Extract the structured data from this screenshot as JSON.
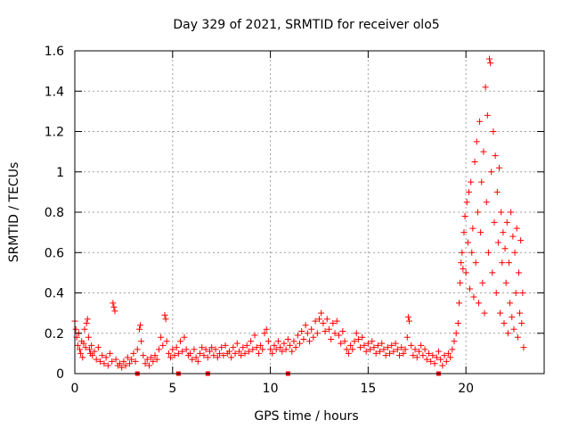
{
  "chart_data": {
    "type": "scatter",
    "title": "Day 329 of 2021, SRMTID for receiver olo5",
    "xlabel": "GPS time / hours",
    "ylabel": "SRMTID / TECUs",
    "xlim": [
      0,
      24
    ],
    "ylim": [
      0,
      1.6
    ],
    "x_ticks": [
      0,
      5,
      10,
      15,
      20
    ],
    "x_tick_labels": [
      "0",
      "5",
      "10",
      "15",
      "20"
    ],
    "y_ticks": [
      0,
      0.2,
      0.4,
      0.6,
      0.8,
      1.0,
      1.2,
      1.4,
      1.6
    ],
    "y_tick_labels": [
      "0",
      "0.2",
      "0.4",
      "0.6",
      "0.8",
      "1",
      "1.2",
      "1.4",
      "1.6"
    ],
    "grid": true,
    "marker": "+",
    "series_color": "#ff0000",
    "series": [
      {
        "name": "SRMTID",
        "points": [
          [
            0.0,
            0.26
          ],
          [
            0.05,
            0.22
          ],
          [
            0.1,
            0.18
          ],
          [
            0.15,
            0.14
          ],
          [
            0.2,
            0.2
          ],
          [
            0.25,
            0.12
          ],
          [
            0.3,
            0.1
          ],
          [
            0.35,
            0.16
          ],
          [
            0.4,
            0.08
          ],
          [
            0.45,
            0.15
          ],
          [
            0.5,
            0.22
          ],
          [
            0.55,
            0.13
          ],
          [
            0.6,
            0.25
          ],
          [
            0.65,
            0.27
          ],
          [
            0.7,
            0.18
          ],
          [
            0.75,
            0.12
          ],
          [
            0.8,
            0.1
          ],
          [
            0.85,
            0.14
          ],
          [
            0.9,
            0.09
          ],
          [
            1.0,
            0.11
          ],
          [
            1.1,
            0.07
          ],
          [
            1.2,
            0.13
          ],
          [
            1.3,
            0.06
          ],
          [
            1.4,
            0.09
          ],
          [
            1.5,
            0.05
          ],
          [
            1.6,
            0.08
          ],
          [
            1.7,
            0.04
          ],
          [
            1.8,
            0.1
          ],
          [
            1.9,
            0.06
          ],
          [
            1.95,
            0.35
          ],
          [
            2.0,
            0.33
          ],
          [
            2.05,
            0.31
          ],
          [
            2.1,
            0.07
          ],
          [
            2.2,
            0.04
          ],
          [
            2.3,
            0.05
          ],
          [
            2.4,
            0.03
          ],
          [
            2.5,
            0.06
          ],
          [
            2.6,
            0.04
          ],
          [
            2.7,
            0.08
          ],
          [
            2.8,
            0.05
          ],
          [
            2.9,
            0.07
          ],
          [
            3.0,
            0.1
          ],
          [
            3.1,
            0.06
          ],
          [
            3.2,
            0.12
          ],
          [
            3.3,
            0.22
          ],
          [
            3.35,
            0.24
          ],
          [
            3.4,
            0.16
          ],
          [
            3.5,
            0.09
          ],
          [
            3.6,
            0.05
          ],
          [
            3.7,
            0.07
          ],
          [
            3.8,
            0.04
          ],
          [
            3.9,
            0.08
          ],
          [
            4.0,
            0.06
          ],
          [
            4.1,
            0.09
          ],
          [
            4.2,
            0.07
          ],
          [
            4.3,
            0.12
          ],
          [
            4.4,
            0.18
          ],
          [
            4.5,
            0.14
          ],
          [
            4.6,
            0.29
          ],
          [
            4.65,
            0.27
          ],
          [
            4.7,
            0.16
          ],
          [
            4.8,
            0.1
          ],
          [
            4.9,
            0.08
          ],
          [
            5.0,
            0.12
          ],
          [
            5.1,
            0.09
          ],
          [
            5.2,
            0.13
          ],
          [
            5.3,
            0.1
          ],
          [
            5.4,
            0.16
          ],
          [
            5.5,
            0.11
          ],
          [
            5.6,
            0.18
          ],
          [
            5.7,
            0.12
          ],
          [
            5.8,
            0.09
          ],
          [
            5.9,
            0.1
          ],
          [
            6.0,
            0.07
          ],
          [
            6.1,
            0.12
          ],
          [
            6.2,
            0.08
          ],
          [
            6.3,
            0.06
          ],
          [
            6.4,
            0.1
          ],
          [
            6.5,
            0.13
          ],
          [
            6.6,
            0.09
          ],
          [
            6.7,
            0.12
          ],
          [
            6.8,
            0.08
          ],
          [
            6.9,
            0.11
          ],
          [
            7.0,
            0.13
          ],
          [
            7.1,
            0.09
          ],
          [
            7.2,
            0.12
          ],
          [
            7.3,
            0.08
          ],
          [
            7.4,
            0.1
          ],
          [
            7.5,
            0.13
          ],
          [
            7.6,
            0.09
          ],
          [
            7.7,
            0.14
          ],
          [
            7.8,
            0.1
          ],
          [
            7.9,
            0.11
          ],
          [
            8.0,
            0.08
          ],
          [
            8.1,
            0.13
          ],
          [
            8.2,
            0.1
          ],
          [
            8.3,
            0.15
          ],
          [
            8.4,
            0.11
          ],
          [
            8.5,
            0.09
          ],
          [
            8.6,
            0.13
          ],
          [
            8.7,
            0.1
          ],
          [
            8.8,
            0.14
          ],
          [
            8.9,
            0.11
          ],
          [
            9.0,
            0.16
          ],
          [
            9.1,
            0.12
          ],
          [
            9.2,
            0.19
          ],
          [
            9.3,
            0.13
          ],
          [
            9.4,
            0.1
          ],
          [
            9.5,
            0.14
          ],
          [
            9.6,
            0.12
          ],
          [
            9.7,
            0.2
          ],
          [
            9.8,
            0.22
          ],
          [
            9.9,
            0.16
          ],
          [
            10.0,
            0.12
          ],
          [
            10.1,
            0.1
          ],
          [
            10.2,
            0.14
          ],
          [
            10.3,
            0.12
          ],
          [
            10.4,
            0.16
          ],
          [
            10.5,
            0.13
          ],
          [
            10.6,
            0.11
          ],
          [
            10.7,
            0.15
          ],
          [
            10.8,
            0.12
          ],
          [
            10.9,
            0.17
          ],
          [
            11.0,
            0.14
          ],
          [
            11.1,
            0.11
          ],
          [
            11.2,
            0.16
          ],
          [
            11.3,
            0.13
          ],
          [
            11.4,
            0.19
          ],
          [
            11.5,
            0.15
          ],
          [
            11.6,
            0.21
          ],
          [
            11.7,
            0.17
          ],
          [
            11.8,
            0.24
          ],
          [
            11.9,
            0.2
          ],
          [
            12.0,
            0.16
          ],
          [
            12.1,
            0.22
          ],
          [
            12.2,
            0.18
          ],
          [
            12.3,
            0.26
          ],
          [
            12.4,
            0.2
          ],
          [
            12.5,
            0.27
          ],
          [
            12.6,
            0.3
          ],
          [
            12.7,
            0.25
          ],
          [
            12.8,
            0.21
          ],
          [
            12.9,
            0.27
          ],
          [
            13.0,
            0.22
          ],
          [
            13.1,
            0.17
          ],
          [
            13.2,
            0.25
          ],
          [
            13.3,
            0.2
          ],
          [
            13.4,
            0.26
          ],
          [
            13.5,
            0.19
          ],
          [
            13.6,
            0.15
          ],
          [
            13.7,
            0.21
          ],
          [
            13.8,
            0.16
          ],
          [
            13.9,
            0.12
          ],
          [
            14.0,
            0.1
          ],
          [
            14.1,
            0.14
          ],
          [
            14.2,
            0.12
          ],
          [
            14.3,
            0.16
          ],
          [
            14.4,
            0.2
          ],
          [
            14.5,
            0.17
          ],
          [
            14.6,
            0.13
          ],
          [
            14.7,
            0.18
          ],
          [
            14.8,
            0.14
          ],
          [
            14.9,
            0.11
          ],
          [
            15.0,
            0.15
          ],
          [
            15.1,
            0.12
          ],
          [
            15.2,
            0.16
          ],
          [
            15.3,
            0.13
          ],
          [
            15.4,
            0.1
          ],
          [
            15.5,
            0.14
          ],
          [
            15.6,
            0.11
          ],
          [
            15.7,
            0.15
          ],
          [
            15.8,
            0.12
          ],
          [
            15.9,
            0.09
          ],
          [
            16.0,
            0.13
          ],
          [
            16.1,
            0.1
          ],
          [
            16.2,
            0.14
          ],
          [
            16.3,
            0.11
          ],
          [
            16.4,
            0.15
          ],
          [
            16.5,
            0.12
          ],
          [
            16.6,
            0.09
          ],
          [
            16.7,
            0.13
          ],
          [
            16.8,
            0.1
          ],
          [
            16.9,
            0.12
          ],
          [
            17.0,
            0.18
          ],
          [
            17.05,
            0.28
          ],
          [
            17.1,
            0.26
          ],
          [
            17.2,
            0.14
          ],
          [
            17.3,
            0.09
          ],
          [
            17.4,
            0.12
          ],
          [
            17.5,
            0.08
          ],
          [
            17.6,
            0.11
          ],
          [
            17.7,
            0.14
          ],
          [
            17.8,
            0.09
          ],
          [
            17.9,
            0.12
          ],
          [
            18.0,
            0.07
          ],
          [
            18.1,
            0.1
          ],
          [
            18.2,
            0.06
          ],
          [
            18.3,
            0.09
          ],
          [
            18.4,
            0.05
          ],
          [
            18.5,
            0.08
          ],
          [
            18.6,
            0.11
          ],
          [
            18.7,
            0.07
          ],
          [
            18.8,
            0.04
          ],
          [
            18.9,
            0.09
          ],
          [
            19.0,
            0.06
          ],
          [
            19.1,
            0.1
          ],
          [
            19.2,
            0.08
          ],
          [
            19.3,
            0.12
          ],
          [
            19.4,
            0.16
          ],
          [
            19.5,
            0.2
          ],
          [
            19.6,
            0.25
          ],
          [
            19.65,
            0.35
          ],
          [
            19.7,
            0.45
          ],
          [
            19.75,
            0.55
          ],
          [
            19.8,
            0.6
          ],
          [
            19.85,
            0.52
          ],
          [
            19.9,
            0.7
          ],
          [
            19.95,
            0.78
          ],
          [
            20.0,
            0.5
          ],
          [
            20.05,
            0.85
          ],
          [
            20.1,
            0.65
          ],
          [
            20.15,
            0.9
          ],
          [
            20.2,
            0.42
          ],
          [
            20.25,
            0.95
          ],
          [
            20.3,
            0.6
          ],
          [
            20.35,
            0.72
          ],
          [
            20.4,
            0.38
          ],
          [
            20.45,
            1.05
          ],
          [
            20.5,
            0.55
          ],
          [
            20.55,
            1.15
          ],
          [
            20.6,
            0.8
          ],
          [
            20.65,
            0.35
          ],
          [
            20.7,
            1.25
          ],
          [
            20.75,
            0.7
          ],
          [
            20.8,
            0.95
          ],
          [
            20.85,
            0.45
          ],
          [
            20.9,
            1.1
          ],
          [
            20.95,
            0.3
          ],
          [
            21.0,
            1.42
          ],
          [
            21.05,
            0.85
          ],
          [
            21.1,
            1.28
          ],
          [
            21.15,
            0.6
          ],
          [
            21.2,
            1.56
          ],
          [
            21.25,
            1.54
          ],
          [
            21.3,
            1.0
          ],
          [
            21.35,
            0.5
          ],
          [
            21.4,
            1.2
          ],
          [
            21.45,
            0.75
          ],
          [
            21.5,
            1.08
          ],
          [
            21.55,
            0.4
          ],
          [
            21.6,
            0.9
          ],
          [
            21.65,
            0.65
          ],
          [
            21.7,
            1.02
          ],
          [
            21.75,
            0.3
          ],
          [
            21.8,
            0.8
          ],
          [
            21.85,
            0.55
          ],
          [
            21.9,
            0.7
          ],
          [
            21.95,
            0.25
          ],
          [
            22.0,
            0.62
          ],
          [
            22.05,
            0.45
          ],
          [
            22.1,
            0.75
          ],
          [
            22.15,
            0.2
          ],
          [
            22.2,
            0.55
          ],
          [
            22.25,
            0.35
          ],
          [
            22.3,
            0.8
          ],
          [
            22.35,
            0.28
          ],
          [
            22.4,
            0.68
          ],
          [
            22.45,
            0.22
          ],
          [
            22.5,
            0.6
          ],
          [
            22.55,
            0.4
          ],
          [
            22.6,
            0.72
          ],
          [
            22.65,
            0.18
          ],
          [
            22.7,
            0.5
          ],
          [
            22.75,
            0.3
          ],
          [
            22.8,
            0.66
          ],
          [
            22.85,
            0.25
          ],
          [
            22.9,
            0.4
          ],
          [
            22.95,
            0.13
          ]
        ]
      }
    ],
    "data_gaps_hours": [
      3.2,
      5.3,
      6.8,
      10.9,
      18.6
    ]
  }
}
